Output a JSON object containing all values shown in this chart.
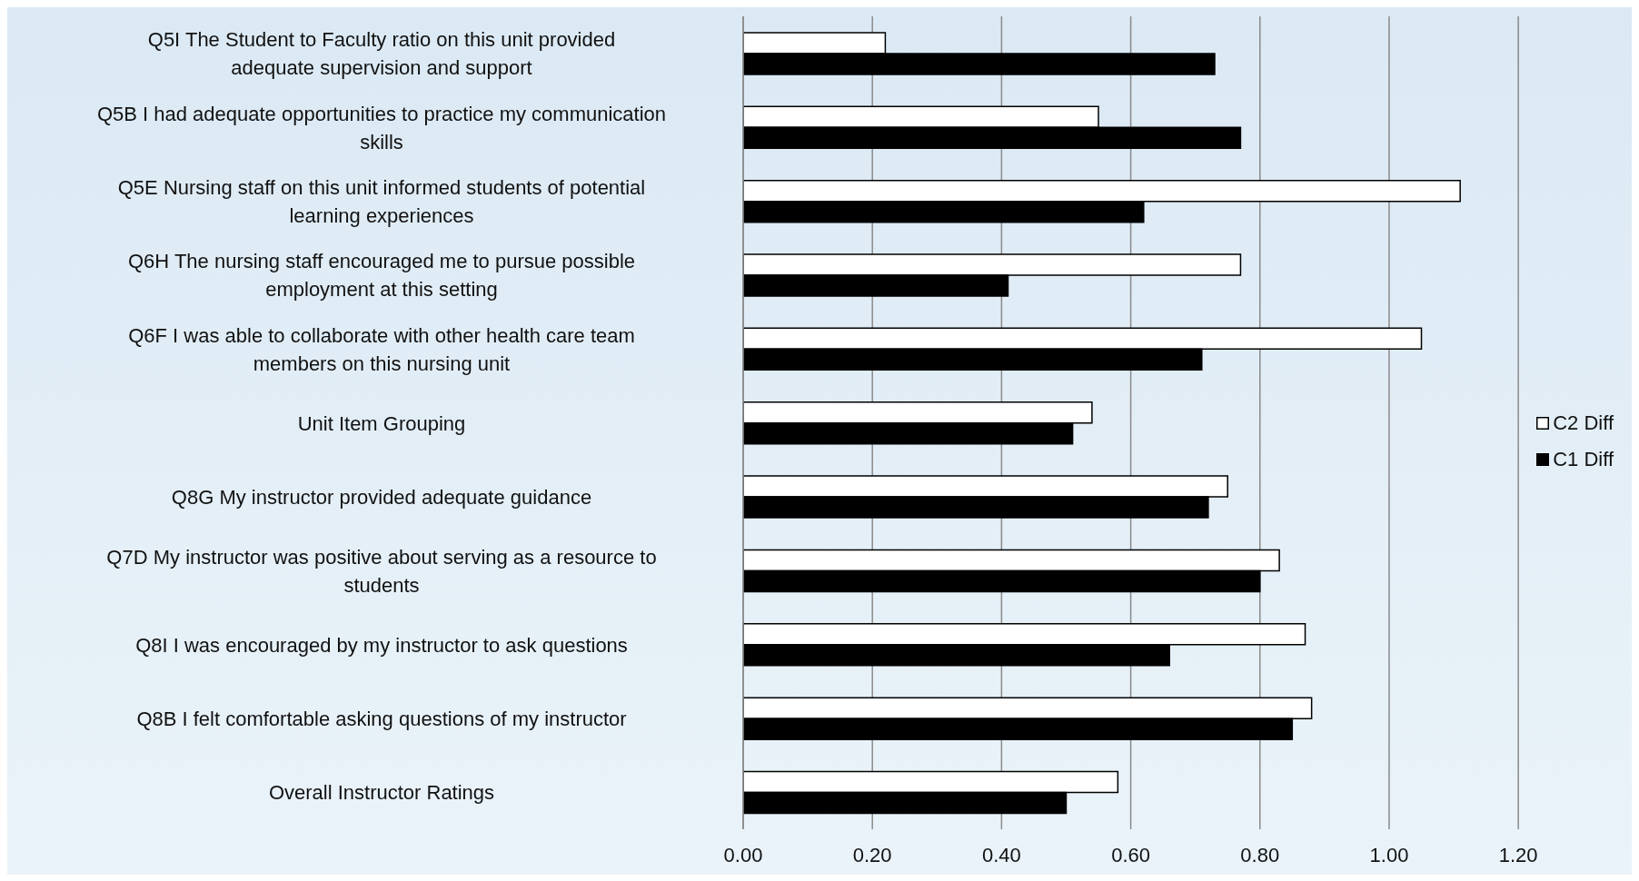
{
  "chart_data": {
    "type": "bar",
    "orientation": "horizontal",
    "categories": [
      "Q5I The Student to Faculty ratio on this unit provided adequate supervision and support",
      "Q5B I had adequate opportunities to practice my communication skills",
      "Q5E Nursing staff on this unit informed students of potential learning experiences",
      "Q6H The nursing staff encouraged me to pursue possible employment at this setting",
      "Q6F I was able to collaborate with other health care team members on this nursing unit",
      "Unit Item Grouping",
      "Q8G My instructor provided adequate guidance",
      "Q7D My instructor was positive about serving as a resource to students",
      "Q8I I was encouraged by my instructor to ask questions",
      "Q8B I felt comfortable asking questions of my instructor",
      "Overall Instructor Ratings"
    ],
    "series": [
      {
        "name": "C2 Diff",
        "color": "#ffffff",
        "values": [
          0.22,
          0.55,
          1.11,
          0.77,
          1.05,
          0.54,
          0.75,
          0.83,
          0.87,
          0.88,
          0.58
        ]
      },
      {
        "name": "C1 Diff",
        "color": "#000000",
        "values": [
          0.73,
          0.77,
          0.62,
          0.41,
          0.71,
          0.51,
          0.72,
          0.8,
          0.66,
          0.85,
          0.5
        ]
      }
    ],
    "xlim": [
      0,
      1.2
    ],
    "xticks": [
      {
        "value": 0,
        "label": "0.00"
      },
      {
        "value": 0.2,
        "label": "0.20"
      },
      {
        "value": 0.4,
        "label": "0.40"
      },
      {
        "value": 0.6,
        "label": "0.60"
      },
      {
        "value": 0.8,
        "label": "0.80"
      },
      {
        "value": 1,
        "label": "1.00"
      },
      {
        "value": 1.2,
        "label": "1.20"
      }
    ],
    "grid": "x",
    "legend": "right"
  }
}
